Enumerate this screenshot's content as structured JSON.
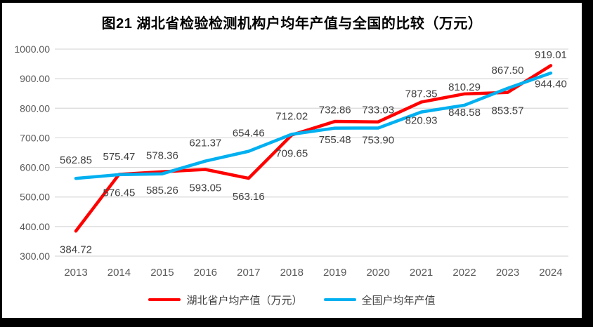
{
  "chart_data": {
    "type": "line",
    "title": "图21 湖北省检验检测机构户均年产值与全国的比较（万元）",
    "categories": [
      "2013",
      "2014",
      "2015",
      "2016",
      "2017",
      "2018",
      "2019",
      "2020",
      "2021",
      "2022",
      "2023",
      "2024"
    ],
    "series": [
      {
        "name": "湖北省户均产值（万元）",
        "color": "#FF0000",
        "label_position": "below",
        "values": [
          384.72,
          576.45,
          585.26,
          593.05,
          563.16,
          709.65,
          755.48,
          753.9,
          820.93,
          848.58,
          853.57,
          944.4
        ]
      },
      {
        "name": "全国户均年产值",
        "color": "#00B0F0",
        "label_position": "above",
        "values": [
          562.85,
          575.47,
          578.36,
          621.37,
          654.46,
          712.02,
          732.86,
          733.03,
          787.35,
          810.29,
          867.5,
          919.01
        ]
      }
    ],
    "ylim": [
      300,
      1000
    ],
    "ytick_step": 100,
    "ytick_decimals": 2,
    "grid": true,
    "legend_position": "bottom",
    "data_labels": true,
    "gridline_color": "#D9D9D9",
    "axis_label_color": "#595959",
    "data_label_color": "#404040"
  }
}
